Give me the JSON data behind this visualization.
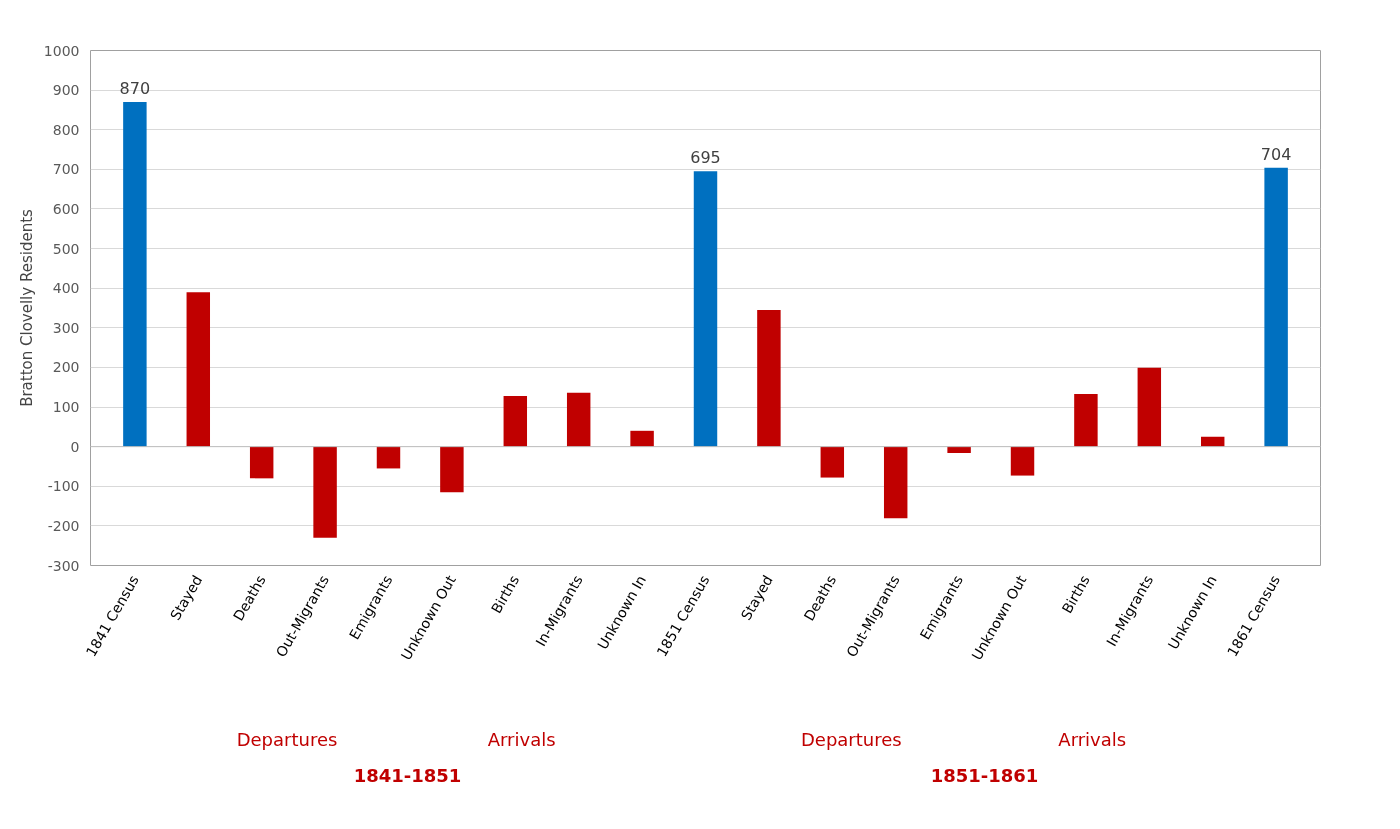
{
  "chart_data": {
    "type": "bar",
    "ylabel": "Bratton Clovelly Residents",
    "categories": [
      "1841 Census",
      "Stayed",
      "Deaths",
      "Out-Migrants",
      "Emigrants",
      "Unknown Out",
      "Births",
      "In-Migrants",
      "Unknown In",
      "1851 Census",
      "Stayed",
      "Deaths",
      "Out-Migrants",
      "Emigrants",
      "Unknown Out",
      "Births",
      "In-Migrants",
      "Unknown In",
      "1861 Census"
    ],
    "values": [
      870,
      390,
      -80,
      -230,
      -55,
      -115,
      128,
      136,
      40,
      695,
      345,
      -78,
      -181,
      -16,
      -73,
      133,
      199,
      25,
      704
    ],
    "colors": [
      "#0070c0",
      "#c00000",
      "#c00000",
      "#c00000",
      "#c00000",
      "#c00000",
      "#c00000",
      "#c00000",
      "#c00000",
      "#0070c0",
      "#c00000",
      "#c00000",
      "#c00000",
      "#c00000",
      "#c00000",
      "#c00000",
      "#c00000",
      "#c00000",
      "#0070c0"
    ],
    "value_labels": [
      "870",
      null,
      null,
      null,
      null,
      null,
      null,
      null,
      null,
      "695",
      null,
      null,
      null,
      null,
      null,
      null,
      null,
      null,
      "704"
    ],
    "ylim": [
      -300,
      1000
    ],
    "yticks": [
      -300,
      -200,
      -100,
      0,
      100,
      200,
      300,
      400,
      500,
      600,
      700,
      800,
      900,
      1000
    ],
    "grid": "y",
    "annotations": [
      "Departures",
      "Arrivals",
      "Departures",
      "Arrivals",
      "1841-1851",
      "1851-1861"
    ]
  }
}
